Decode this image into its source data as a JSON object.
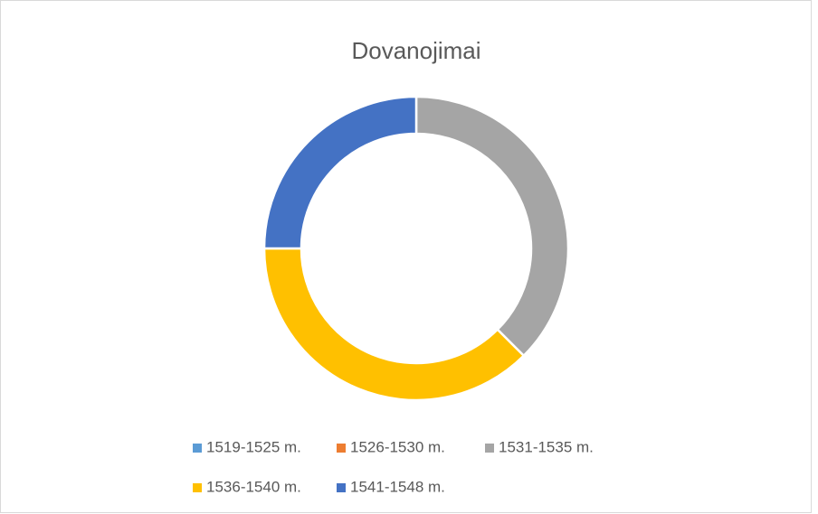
{
  "chart_data": {
    "type": "donut",
    "title": "Dovanojimai",
    "categories": [
      "1519-1525 m.",
      "1526-1530 m.",
      "1531-1535 m.",
      "1536-1540 m.",
      "1541-1548 m."
    ],
    "values": [
      0,
      0,
      3,
      3,
      2
    ],
    "colors": [
      "#5b9bd5",
      "#ed7d31",
      "#a5a5a5",
      "#ffc000",
      "#4472c4"
    ],
    "legend": "bottom"
  }
}
